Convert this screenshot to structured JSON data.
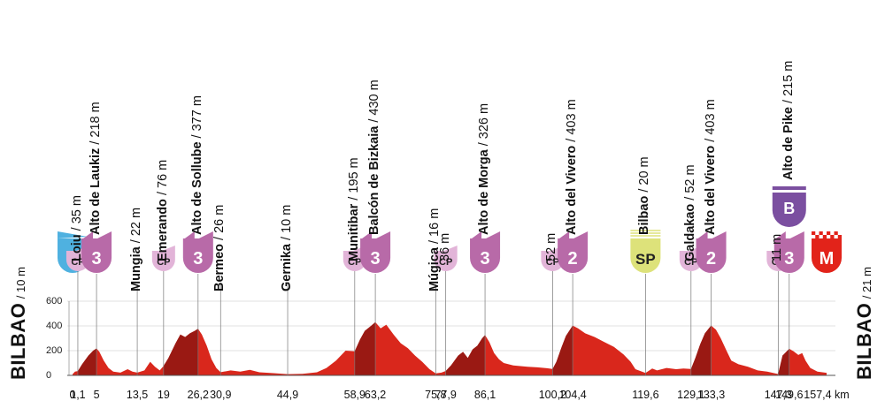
{
  "colors": {
    "profile": "#d9271c",
    "profile_dark": "#8e1712",
    "category_purple": "#b86aa8",
    "cp_pink": "#e2b4d8",
    "start_blue": "#4fb1e0",
    "sprint_yellow": "#dde27a",
    "finish_red": "#e2231a",
    "bonus_purple": "#7b4fa0"
  },
  "side_labels": {
    "start_city": "BILBAO",
    "start_alt": "/ 10 m",
    "finish_city": "BILBAO",
    "finish_alt": "/ 21 m"
  },
  "y_axis": {
    "ticks": [
      "0",
      "200",
      "400",
      "600"
    ]
  },
  "distance_unit": "km",
  "points": [
    {
      "km_label": "0",
      "km": 0,
      "place": "",
      "alt": "",
      "badge": "S",
      "badge_type": "start"
    },
    {
      "km_label": "1,1",
      "km": 1.1,
      "place": "Loiu",
      "alt": "/ 35 m",
      "badge": "CP",
      "badge_type": "cp"
    },
    {
      "km_label": "5",
      "km": 5,
      "place": "Alto de Laukiz",
      "alt": "/ 218 m",
      "badge": "3",
      "badge_type": "climb"
    },
    {
      "km_label": "13,5",
      "km": 13.5,
      "place": "Mungia",
      "alt": "/ 22 m",
      "badge": "",
      "badge_type": "none"
    },
    {
      "km_label": "19",
      "km": 19,
      "place": "Emerando",
      "alt": "/ 76 m",
      "badge": "CP",
      "badge_type": "cp"
    },
    {
      "km_label": "26,2",
      "km": 26.2,
      "place": "Alto de Sollube",
      "alt": "/ 377 m",
      "badge": "3",
      "badge_type": "climb"
    },
    {
      "km_label": "30,9",
      "km": 30.9,
      "place": "Bermeo",
      "alt": "/ 26 m",
      "badge": "",
      "badge_type": "none"
    },
    {
      "km_label": "44,9",
      "km": 44.9,
      "place": "Gernika",
      "alt": "/ 10 m",
      "badge": "",
      "badge_type": "none"
    },
    {
      "km_label": "58,9",
      "km": 58.9,
      "place": "Munitibar",
      "alt": "/ 195 m",
      "badge": "CP",
      "badge_type": "cp"
    },
    {
      "km_label": "63,2",
      "km": 63.2,
      "place": "Balcón de Bizkaia",
      "alt": "/ 430 m",
      "badge": "3",
      "badge_type": "climb"
    },
    {
      "km_label": "75,8",
      "km": 75.8,
      "place": "Múgica",
      "alt": "/ 16 m",
      "badge": "",
      "badge_type": "none"
    },
    {
      "km_label": "77,9",
      "km": 77.9,
      "place": "",
      "alt": "36 m",
      "badge": "CP",
      "badge_type": "cp"
    },
    {
      "km_label": "86,1",
      "km": 86.1,
      "place": "Alto de Morga",
      "alt": "/ 326 m",
      "badge": "3",
      "badge_type": "climb"
    },
    {
      "km_label": "100,2",
      "km": 100.2,
      "place": "",
      "alt": "52 m",
      "badge": "CP",
      "badge_type": "cp"
    },
    {
      "km_label": "104,4",
      "km": 104.4,
      "place": "Alto del Vivero",
      "alt": "/ 403 m",
      "badge": "2",
      "badge_type": "climb"
    },
    {
      "km_label": "119,6",
      "km": 119.6,
      "place": "Bilbao",
      "alt": "/ 20 m",
      "badge": "SP",
      "badge_type": "sprint"
    },
    {
      "km_label": "129,1",
      "km": 129.1,
      "place": "Galdakao",
      "alt": "/ 52 m",
      "badge": "CP",
      "badge_type": "cp"
    },
    {
      "km_label": "133,3",
      "km": 133.3,
      "place": "Alto del Vivero",
      "alt": "/ 403 m",
      "badge": "2",
      "badge_type": "climb"
    },
    {
      "km_label": "147,3",
      "km": 147.3,
      "place": "",
      "alt": "11 m",
      "badge": "CP",
      "badge_type": "cp"
    },
    {
      "km_label": "149,6",
      "km": 149.6,
      "place": "Alto de Pike",
      "alt": "/ 215 m",
      "badge": "3",
      "badge_type": "climb",
      "bonus": "B"
    },
    {
      "km_label": "157,4",
      "km": 157.4,
      "place": "",
      "alt": "",
      "badge": "M",
      "badge_type": "finish"
    }
  ],
  "profile": [
    [
      0,
      10
    ],
    [
      0.5,
      30
    ],
    [
      1.1,
      35
    ],
    [
      2,
      90
    ],
    [
      3.3,
      160
    ],
    [
      4.3,
      200
    ],
    [
      5,
      218
    ],
    [
      5.6,
      190
    ],
    [
      6.5,
      120
    ],
    [
      7.5,
      60
    ],
    [
      8.5,
      30
    ],
    [
      10,
      22
    ],
    [
      11.5,
      50
    ],
    [
      12.5,
      30
    ],
    [
      13.5,
      22
    ],
    [
      15,
      40
    ],
    [
      16.2,
      110
    ],
    [
      17.2,
      70
    ],
    [
      18.2,
      40
    ],
    [
      19,
      76
    ],
    [
      20,
      140
    ],
    [
      21.5,
      260
    ],
    [
      22.5,
      330
    ],
    [
      23.5,
      310
    ],
    [
      24.5,
      340
    ],
    [
      25.5,
      360
    ],
    [
      26.2,
      377
    ],
    [
      27,
      330
    ],
    [
      28,
      240
    ],
    [
      29,
      130
    ],
    [
      30,
      60
    ],
    [
      30.9,
      26
    ],
    [
      33,
      40
    ],
    [
      35,
      30
    ],
    [
      37,
      45
    ],
    [
      39,
      25
    ],
    [
      42,
      18
    ],
    [
      44.9,
      10
    ],
    [
      48,
      12
    ],
    [
      51,
      25
    ],
    [
      53,
      60
    ],
    [
      55,
      120
    ],
    [
      57,
      200
    ],
    [
      58.9,
      195
    ],
    [
      60,
      290
    ],
    [
      61,
      360
    ],
    [
      62.3,
      400
    ],
    [
      63.2,
      430
    ],
    [
      64.3,
      380
    ],
    [
      65.5,
      410
    ],
    [
      67,
      330
    ],
    [
      68.5,
      260
    ],
    [
      70,
      220
    ],
    [
      71.5,
      160
    ],
    [
      73,
      110
    ],
    [
      74.5,
      50
    ],
    [
      75.8,
      16
    ],
    [
      77,
      22
    ],
    [
      77.9,
      36
    ],
    [
      79,
      80
    ],
    [
      80.5,
      160
    ],
    [
      81.5,
      190
    ],
    [
      82.5,
      140
    ],
    [
      83.5,
      210
    ],
    [
      84.5,
      240
    ],
    [
      85.5,
      300
    ],
    [
      86.1,
      326
    ],
    [
      87,
      270
    ],
    [
      88,
      180
    ],
    [
      89,
      130
    ],
    [
      90,
      100
    ],
    [
      92,
      80
    ],
    [
      95,
      70
    ],
    [
      97,
      65
    ],
    [
      99,
      58
    ],
    [
      100.2,
      52
    ],
    [
      101,
      110
    ],
    [
      102,
      220
    ],
    [
      103,
      320
    ],
    [
      104.4,
      403
    ],
    [
      105.5,
      380
    ],
    [
      107,
      340
    ],
    [
      109,
      310
    ],
    [
      111,
      270
    ],
    [
      113,
      230
    ],
    [
      115,
      170
    ],
    [
      116.5,
      110
    ],
    [
      117.5,
      50
    ],
    [
      119.6,
      20
    ],
    [
      121,
      55
    ],
    [
      122,
      40
    ],
    [
      124,
      60
    ],
    [
      126,
      50
    ],
    [
      127.5,
      55
    ],
    [
      129.1,
      52
    ],
    [
      130,
      140
    ],
    [
      131,
      250
    ],
    [
      132,
      340
    ],
    [
      133.3,
      403
    ],
    [
      134.3,
      370
    ],
    [
      135.3,
      300
    ],
    [
      136.5,
      200
    ],
    [
      137.5,
      120
    ],
    [
      139,
      90
    ],
    [
      141,
      70
    ],
    [
      143,
      40
    ],
    [
      145,
      30
    ],
    [
      147.3,
      11
    ],
    [
      148.2,
      160
    ],
    [
      149.6,
      215
    ],
    [
      150.5,
      195
    ],
    [
      151.5,
      165
    ],
    [
      152.3,
      180
    ],
    [
      153,
      120
    ],
    [
      154,
      60
    ],
    [
      155.5,
      30
    ],
    [
      157.4,
      21
    ]
  ]
}
